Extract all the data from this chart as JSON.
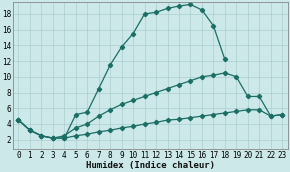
{
  "xlabel": "Humidex (Indice chaleur)",
  "bg_color": "#cce8e8",
  "line_color": "#1a6e65",
  "grid_color": "#aacfcf",
  "xlim_min": -0.5,
  "xlim_max": 23.5,
  "ylim_min": 0.8,
  "ylim_max": 19.5,
  "xticks": [
    0,
    1,
    2,
    3,
    4,
    5,
    6,
    7,
    8,
    9,
    10,
    11,
    12,
    13,
    14,
    15,
    16,
    17,
    18,
    19,
    20,
    21,
    22,
    23
  ],
  "yticks": [
    2,
    4,
    6,
    8,
    10,
    12,
    14,
    16,
    18
  ],
  "line1_x": [
    0,
    1,
    2,
    3,
    4,
    5,
    6,
    7,
    8,
    9,
    10,
    11,
    12,
    13,
    14,
    15,
    16,
    17,
    18
  ],
  "line1_y": [
    4.5,
    3.2,
    2.5,
    2.2,
    2.2,
    5.2,
    5.5,
    8.5,
    11.5,
    13.8,
    15.5,
    18.0,
    18.2,
    18.7,
    19.0,
    19.2,
    18.5,
    16.5,
    12.2
  ],
  "line2_x": [
    0,
    1,
    2,
    3,
    4,
    5,
    6,
    7,
    8,
    9,
    10,
    11,
    12,
    13,
    14,
    15,
    16,
    17,
    18,
    19,
    20,
    21,
    22,
    23
  ],
  "line2_y": [
    4.5,
    3.2,
    2.5,
    2.2,
    2.5,
    3.5,
    4.0,
    5.0,
    5.8,
    6.5,
    7.0,
    7.5,
    8.0,
    8.5,
    9.0,
    9.5,
    10.0,
    10.2,
    10.5,
    10.0,
    7.5,
    7.5,
    5.0,
    5.2
  ],
  "line3_x": [
    0,
    1,
    2,
    3,
    4,
    5,
    6,
    7,
    8,
    9,
    10,
    11,
    12,
    13,
    14,
    15,
    16,
    17,
    18,
    19,
    20,
    21,
    22,
    23
  ],
  "line3_y": [
    4.5,
    3.2,
    2.5,
    2.2,
    2.2,
    2.5,
    2.7,
    3.0,
    3.2,
    3.5,
    3.7,
    4.0,
    4.2,
    4.5,
    4.6,
    4.8,
    5.0,
    5.2,
    5.4,
    5.6,
    5.8,
    5.8,
    5.0,
    5.2
  ],
  "tick_fontsize": 5.5,
  "xlabel_fontsize": 6.5
}
